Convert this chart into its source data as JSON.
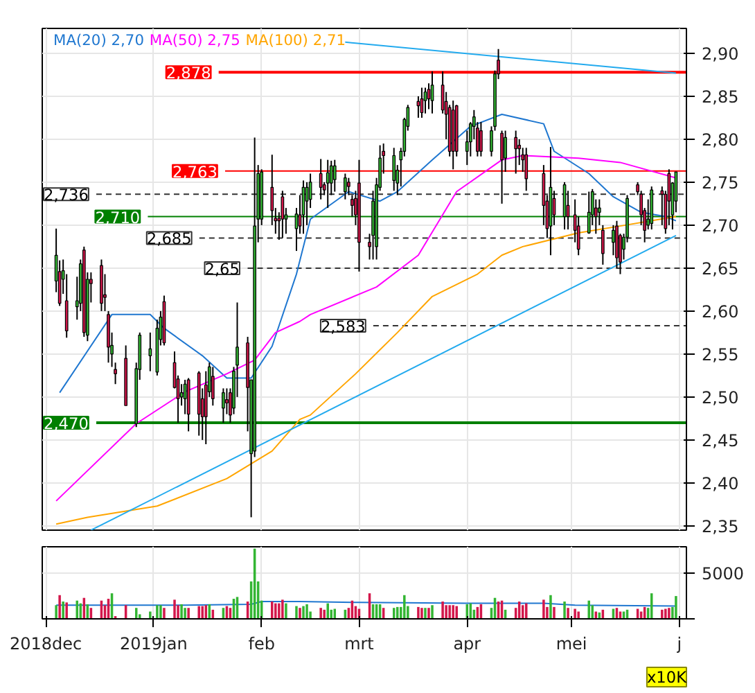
{
  "chart_data": [
    {
      "type": "candlestick",
      "tick_labels": "y",
      "grid": true,
      "legend": "top left",
      "x": [
        "2018-12-04",
        "2018-12-05",
        "2018-12-06",
        "2018-12-07",
        "2018-12-10",
        "2018-12-11",
        "2018-12-12",
        "2018-12-13",
        "2018-12-14",
        "2018-12-17",
        "2018-12-18",
        "2018-12-19",
        "2018-12-20",
        "2018-12-21",
        "2018-12-24",
        "2018-12-27",
        "2018-12-28",
        "2018-12-31",
        "2019-01-02",
        "2019-01-03",
        "2019-01-04",
        "2019-01-07",
        "2019-01-08",
        "2019-01-09",
        "2019-01-10",
        "2019-01-11",
        "2019-01-14",
        "2019-01-15",
        "2019-01-16",
        "2019-01-17",
        "2019-01-18",
        "2019-01-21",
        "2019-01-22",
        "2019-01-23",
        "2019-01-24",
        "2019-01-25",
        "2019-01-28",
        "2019-01-29",
        "2019-01-30",
        "2019-01-31",
        "2019-02-01",
        "2019-02-04",
        "2019-02-05",
        "2019-02-06",
        "2019-02-07",
        "2019-02-08",
        "2019-02-11",
        "2019-02-12",
        "2019-02-13",
        "2019-02-14",
        "2019-02-15",
        "2019-02-18",
        "2019-02-19",
        "2019-02-20",
        "2019-02-21",
        "2019-02-22",
        "2019-02-25",
        "2019-02-26",
        "2019-02-27",
        "2019-02-28",
        "2019-03-01",
        "2019-03-04",
        "2019-03-05",
        "2019-03-06",
        "2019-03-07",
        "2019-03-08",
        "2019-03-11",
        "2019-03-12",
        "2019-03-13",
        "2019-03-14",
        "2019-03-15",
        "2019-03-18",
        "2019-03-19",
        "2019-03-20",
        "2019-03-21",
        "2019-03-22",
        "2019-03-25",
        "2019-03-26",
        "2019-03-27",
        "2019-03-28",
        "2019-03-29",
        "2019-04-01",
        "2019-04-02",
        "2019-04-03",
        "2019-04-04",
        "2019-04-05",
        "2019-04-08",
        "2019-04-09",
        "2019-04-10",
        "2019-04-11",
        "2019-04-12",
        "2019-04-15",
        "2019-04-16",
        "2019-04-17",
        "2019-04-18",
        "2019-04-23",
        "2019-04-24",
        "2019-04-25",
        "2019-04-26",
        "2019-04-29",
        "2019-04-30",
        "2019-05-02",
        "2019-05-03",
        "2019-05-06",
        "2019-05-07",
        "2019-05-08",
        "2019-05-09",
        "2019-05-10",
        "2019-05-13",
        "2019-05-14",
        "2019-05-15",
        "2019-05-16",
        "2019-05-17",
        "2019-05-20",
        "2019-05-21",
        "2019-05-22",
        "2019-05-23",
        "2019-05-24",
        "2019-05-27",
        "2019-05-28",
        "2019-05-29",
        "2019-05-30",
        "2019-05-31"
      ],
      "ohlc": [
        [
          2.635,
          2.696,
          2.622,
          2.665
        ],
        [
          2.646,
          2.659,
          2.606,
          2.609
        ],
        [
          2.637,
          2.66,
          2.62,
          2.647
        ],
        [
          2.612,
          2.643,
          2.569,
          2.577
        ],
        [
          2.605,
          2.64,
          2.59,
          2.612
        ],
        [
          2.609,
          2.66,
          2.6,
          2.655
        ],
        [
          2.671,
          2.675,
          2.57,
          2.575
        ],
        [
          2.572,
          2.645,
          2.565,
          2.637
        ],
        [
          2.637,
          2.645,
          2.61,
          2.632
        ],
        [
          2.653,
          2.66,
          2.6,
          2.609
        ],
        [
          2.619,
          2.643,
          2.6,
          2.616
        ],
        [
          2.596,
          2.6,
          2.54,
          2.558
        ],
        [
          2.55,
          2.575,
          2.535,
          2.56
        ],
        [
          2.532,
          2.54,
          2.515,
          2.527
        ],
        [
          2.545,
          2.56,
          2.49,
          2.49
        ],
        [
          2.469,
          2.54,
          2.465,
          2.533
        ],
        [
          2.532,
          2.575,
          2.52,
          2.572
        ],
        [
          2.548,
          2.575,
          2.53,
          2.556
        ],
        [
          2.529,
          2.59,
          2.525,
          2.58
        ],
        [
          2.567,
          2.6,
          2.56,
          2.593
        ],
        [
          2.611,
          2.618,
          2.56,
          2.563
        ],
        [
          2.54,
          2.553,
          2.51,
          2.511
        ],
        [
          2.521,
          2.525,
          2.47,
          2.498
        ],
        [
          2.5,
          2.515,
          2.49,
          2.505
        ],
        [
          2.498,
          2.52,
          2.48,
          2.515
        ],
        [
          2.52,
          2.522,
          2.46,
          2.48
        ],
        [
          2.528,
          2.53,
          2.455,
          2.48
        ],
        [
          2.498,
          2.51,
          2.45,
          2.477
        ],
        [
          2.514,
          2.53,
          2.445,
          2.477
        ],
        [
          2.506,
          2.54,
          2.5,
          2.535
        ],
        [
          2.524,
          2.535,
          2.49,
          2.498
        ],
        [
          2.487,
          2.51,
          2.47,
          2.505
        ],
        [
          2.497,
          2.51,
          2.48,
          2.493
        ],
        [
          2.505,
          2.51,
          2.47,
          2.479
        ],
        [
          2.487,
          2.535,
          2.48,
          2.53
        ],
        [
          2.537,
          2.61,
          2.5,
          2.558
        ],
        [
          2.563,
          2.57,
          2.46,
          2.511
        ],
        [
          2.434,
          2.52,
          2.36,
          2.52
        ],
        [
          2.437,
          2.802,
          2.43,
          2.699
        ],
        [
          2.707,
          2.77,
          2.68,
          2.76
        ],
        [
          2.707,
          2.765,
          2.7,
          2.762
        ],
        [
          2.744,
          2.782,
          2.7,
          2.717
        ],
        [
          2.708,
          2.72,
          2.69,
          2.705
        ],
        [
          2.708,
          2.715,
          2.683,
          2.705
        ],
        [
          2.733,
          2.74,
          2.685,
          2.707
        ],
        [
          2.707,
          2.72,
          2.69,
          2.712
        ],
        [
          2.696,
          2.72,
          2.67,
          2.713
        ],
        [
          2.712,
          2.735,
          2.69,
          2.699
        ],
        [
          2.712,
          2.752,
          2.69,
          2.744
        ],
        [
          2.728,
          2.75,
          2.7,
          2.744
        ],
        [
          2.73,
          2.76,
          2.72,
          2.75
        ],
        [
          2.76,
          2.777,
          2.73,
          2.744
        ],
        [
          2.747,
          2.75,
          2.735,
          2.741
        ],
        [
          2.749,
          2.776,
          2.72,
          2.761
        ],
        [
          2.749,
          2.775,
          2.735,
          2.769
        ],
        [
          2.753,
          2.776,
          2.739,
          2.769
        ],
        [
          2.739,
          2.76,
          2.73,
          2.755
        ],
        [
          2.75,
          2.755,
          2.735,
          2.745
        ],
        [
          2.73,
          2.735,
          2.71,
          2.723
        ],
        [
          2.731,
          2.74,
          2.7,
          2.712
        ],
        [
          2.749,
          2.776,
          2.646,
          2.68
        ],
        [
          2.68,
          2.69,
          2.66,
          2.675
        ],
        [
          2.688,
          2.74,
          2.66,
          2.728
        ],
        [
          2.675,
          2.755,
          2.66,
          2.747
        ],
        [
          2.744,
          2.793,
          2.74,
          2.778
        ],
        [
          2.786,
          2.795,
          2.76,
          2.781
        ],
        [
          2.752,
          2.79,
          2.74,
          2.781
        ],
        [
          2.749,
          2.77,
          2.735,
          2.764
        ],
        [
          2.776,
          2.79,
          2.745,
          2.786
        ],
        [
          2.786,
          2.825,
          2.78,
          2.823
        ],
        [
          2.815,
          2.84,
          2.81,
          2.837
        ],
        [
          2.844,
          2.85,
          2.825,
          2.839
        ],
        [
          2.847,
          2.86,
          2.825,
          2.831
        ],
        [
          2.845,
          2.86,
          2.83,
          2.855
        ],
        [
          2.858,
          2.865,
          2.835,
          2.847
        ],
        [
          2.845,
          2.879,
          2.83,
          2.863
        ],
        [
          2.863,
          2.879,
          2.83,
          2.834
        ],
        [
          2.844,
          2.855,
          2.8,
          2.829
        ],
        [
          2.837,
          2.84,
          2.78,
          2.786
        ],
        [
          2.834,
          2.845,
          2.765,
          2.786
        ],
        [
          2.839,
          2.84,
          2.78,
          2.786
        ],
        [
          2.786,
          2.81,
          2.77,
          2.797
        ],
        [
          2.797,
          2.82,
          2.78,
          2.818
        ],
        [
          2.815,
          2.834,
          2.8,
          2.826
        ],
        [
          2.813,
          2.82,
          2.78,
          2.786
        ],
        [
          2.81,
          2.82,
          2.78,
          2.786
        ],
        [
          2.786,
          2.815,
          2.78,
          2.81
        ],
        [
          2.815,
          2.88,
          2.81,
          2.876
        ],
        [
          2.892,
          2.905,
          2.87,
          2.876
        ],
        [
          2.807,
          2.81,
          2.725,
          2.776
        ],
        [
          2.778,
          2.81,
          2.762,
          2.802
        ],
        [
          2.802,
          2.81,
          2.76,
          2.789
        ],
        [
          2.793,
          2.8,
          2.77,
          2.789
        ],
        [
          2.782,
          2.79,
          2.762,
          2.776
        ],
        [
          2.782,
          2.79,
          2.74,
          2.754
        ],
        [
          2.76,
          2.77,
          2.7,
          2.723
        ],
        [
          2.728,
          2.735,
          2.685,
          2.696
        ],
        [
          2.699,
          2.791,
          2.665,
          2.744
        ],
        [
          2.731,
          2.74,
          2.7,
          2.712
        ],
        [
          2.71,
          2.75,
          2.695,
          2.747
        ],
        [
          2.723,
          2.74,
          2.695,
          2.71
        ],
        [
          2.712,
          2.73,
          2.68,
          2.694
        ],
        [
          2.699,
          2.71,
          2.665,
          2.672
        ],
        [
          2.691,
          2.739,
          2.69,
          2.715
        ],
        [
          2.712,
          2.742,
          2.7,
          2.739
        ],
        [
          2.72,
          2.73,
          2.69,
          2.71
        ],
        [
          2.715,
          2.73,
          2.7,
          2.72
        ],
        [
          2.694,
          2.7,
          2.654,
          2.667
        ],
        [
          2.68,
          2.7,
          2.665,
          2.694
        ],
        [
          2.699,
          2.705,
          2.65,
          2.662
        ],
        [
          2.688,
          2.69,
          2.643,
          2.657
        ],
        [
          2.672,
          2.69,
          2.66,
          2.686
        ],
        [
          2.686,
          2.735,
          2.68,
          2.731
        ],
        [
          2.747,
          2.75,
          2.735,
          2.739
        ],
        [
          2.736,
          2.74,
          2.7,
          2.712
        ],
        [
          2.717,
          2.72,
          2.68,
          2.694
        ],
        [
          2.7,
          2.73,
          2.695,
          2.707
        ],
        [
          2.702,
          2.745,
          2.695,
          2.741
        ],
        [
          2.74,
          2.745,
          2.7,
          2.736
        ],
        [
          2.736,
          2.74,
          2.69,
          2.696
        ],
        [
          2.76,
          2.765,
          2.7,
          2.728
        ],
        [
          2.712,
          2.75,
          2.695,
          2.749
        ],
        [
          2.728,
          2.762,
          2.715,
          2.762
        ]
      ],
      "colors": [
        "#33b533",
        "#d3174b",
        "#33b533",
        "#d3174b",
        "#33b533",
        "#33b533",
        "#d3174b",
        "#33b533",
        "#d3174b",
        "#d3174b",
        "#d3174b",
        "#d3174b",
        "#33b533",
        "#d3174b",
        "#d3174b",
        "#33b533",
        "#33b533",
        "#33b533",
        "#33b533",
        "#33b533",
        "#d3174b",
        "#d3174b",
        "#d3174b",
        "#33b533",
        "#33b533",
        "#d3174b",
        "#d3174b",
        "#d3174b",
        "#d3174b",
        "#33b533",
        "#d3174b",
        "#33b533",
        "#d3174b",
        "#d3174b",
        "#33b533",
        "#33b533",
        "#d3174b",
        "#33b533",
        "#33b533",
        "#33b533",
        "#33b533",
        "#d3174b",
        "#d3174b",
        "#d3174b",
        "#d3174b",
        "#33b533",
        "#33b533",
        "#d3174b",
        "#33b533",
        "#33b533",
        "#33b533",
        "#d3174b",
        "#d3174b",
        "#33b533",
        "#33b533",
        "#33b533",
        "#33b533",
        "#d3174b",
        "#d3174b",
        "#d3174b",
        "#d3174b",
        "#d3174b",
        "#33b533",
        "#33b533",
        "#33b533",
        "#d3174b",
        "#33b533",
        "#33b533",
        "#33b533",
        "#33b533",
        "#33b533",
        "#d3174b",
        "#d3174b",
        "#33b533",
        "#d3174b",
        "#33b533",
        "#d3174b",
        "#d3174b",
        "#d3174b",
        "#d3174b",
        "#d3174b",
        "#33b533",
        "#33b533",
        "#33b533",
        "#d3174b",
        "#d3174b",
        "#33b533",
        "#33b533",
        "#d3174b",
        "#d3174b",
        "#33b533",
        "#d3174b",
        "#d3174b",
        "#d3174b",
        "#d3174b",
        "#d3174b",
        "#d3174b",
        "#33b533",
        "#d3174b",
        "#33b533",
        "#d3174b",
        "#d3174b",
        "#d3174b",
        "#33b533",
        "#33b533",
        "#d3174b",
        "#33b533",
        "#d3174b",
        "#33b533",
        "#d3174b",
        "#d3174b",
        "#33b533",
        "#33b533",
        "#d3174b",
        "#d3174b",
        "#d3174b",
        "#33b533",
        "#33b533",
        "#d3174b",
        "#d3174b",
        "#d3174b",
        "#33b533",
        "#33b533"
      ],
      "series": [
        {
          "type": "line",
          "name": "MA(20) 2,70",
          "color": "#1f77d0",
          "x": [
            "2018-12-05",
            "2018-12-20",
            "2018-12-31",
            "2019-01-04",
            "2019-01-15",
            "2019-01-22",
            "2019-01-29",
            "2019-02-04",
            "2019-02-11",
            "2019-02-15",
            "2019-02-26",
            "2019-03-07",
            "2019-03-12",
            "2019-03-22",
            "2019-04-02",
            "2019-04-11",
            "2019-04-23",
            "2019-04-26",
            "2019-05-06",
            "2019-05-13",
            "2019-05-21",
            "2019-05-28",
            "2019-05-31"
          ],
          "values": [
            2.505,
            2.596,
            2.596,
            2.58,
            2.548,
            2.522,
            2.522,
            2.559,
            2.643,
            2.707,
            2.739,
            2.728,
            2.739,
            2.776,
            2.815,
            2.829,
            2.818,
            2.786,
            2.76,
            2.733,
            2.715,
            2.71,
            2.705
          ]
        },
        {
          "type": "line",
          "name": "MA(50) 2,75",
          "color": "#ff00ff",
          "x": [
            "2018-12-04",
            "2018-12-27",
            "2019-01-10",
            "2019-01-22",
            "2019-01-30",
            "2019-02-05",
            "2019-02-12",
            "2019-02-15",
            "2019-03-06",
            "2019-03-18",
            "2019-03-29",
            "2019-04-11",
            "2019-04-17",
            "2019-05-03",
            "2019-05-15",
            "2019-05-31"
          ],
          "values": [
            2.379,
            2.469,
            2.506,
            2.527,
            2.543,
            2.575,
            2.588,
            2.596,
            2.628,
            2.665,
            2.739,
            2.776,
            2.781,
            2.778,
            2.773,
            2.755
          ]
        },
        {
          "type": "line",
          "name": "MA(100) 2,71",
          "color": "#ffa500",
          "x": [
            "2018-12-04",
            "2018-12-13",
            "2019-01-02",
            "2019-01-22",
            "2019-02-04",
            "2019-02-12",
            "2019-02-15",
            "2019-02-28",
            "2019-03-12",
            "2019-03-22",
            "2019-04-04",
            "2019-04-11",
            "2019-04-17",
            "2019-05-03",
            "2019-05-15",
            "2019-05-31"
          ],
          "values": [
            2.352,
            2.36,
            2.373,
            2.405,
            2.437,
            2.474,
            2.479,
            2.527,
            2.575,
            2.617,
            2.643,
            2.665,
            2.675,
            2.691,
            2.699,
            2.71
          ]
        },
        {
          "type": "line",
          "color": "#22aaee",
          "x": [
            "2018-12-14",
            "2019-05-31"
          ],
          "values": [
            2.345,
            2.688
          ]
        },
        {
          "type": "line",
          "color": "#22aaee",
          "x": [
            "2019-02-25",
            "2019-05-31"
          ],
          "values": [
            2.913,
            2.877
          ]
        }
      ],
      "ref_lines": [
        {
          "axis": "y",
          "value": 2.878,
          "label": "2,878",
          "color": "#ff0000",
          "line_style": "solid"
        },
        {
          "axis": "y",
          "value": 2.763,
          "label": "2,763",
          "color": "#ff0000",
          "line_style": "solid"
        },
        {
          "axis": "y",
          "value": 2.736,
          "label": "2,736",
          "color": "#333333",
          "line_style": "dashed"
        },
        {
          "axis": "y",
          "value": 2.71,
          "label": "2,710",
          "color": "#008000",
          "line_style": "solid"
        },
        {
          "axis": "y",
          "value": 2.685,
          "label": "2,685",
          "color": "#333333",
          "line_style": "dashed"
        },
        {
          "axis": "y",
          "value": 2.65,
          "label": "2,65",
          "color": "#333333",
          "line_style": "dashed"
        },
        {
          "axis": "y",
          "value": 2.583,
          "label": "2,583",
          "color": "#333333",
          "line_style": "dashed"
        },
        {
          "axis": "y",
          "value": 2.47,
          "label": "2,470",
          "color": "#008000",
          "line_style": "solid"
        }
      ],
      "xlim": [
        "2018-11-30",
        "2019-06-03"
      ],
      "xticks": [
        {
          "value": "2018-12-01",
          "label": null
        },
        {
          "value": "2019-01-01",
          "label": null
        },
        {
          "value": "2019-02-01",
          "label": null
        },
        {
          "value": "2019-03-01",
          "label": null
        },
        {
          "value": "2019-04-01",
          "label": null
        },
        {
          "value": "2019-05-01",
          "label": null
        },
        {
          "value": "2019-06-01",
          "label": null
        }
      ],
      "ylim": [
        2.345,
        2.929
      ],
      "yticks": [
        {
          "value": 2.35,
          "label": "2,35"
        },
        {
          "value": 2.4,
          "label": "2,40"
        },
        {
          "value": 2.45,
          "label": "2,45"
        },
        {
          "value": 2.5,
          "label": "2,50"
        },
        {
          "value": 2.55,
          "label": "2,55"
        },
        {
          "value": 2.6,
          "label": "2,60"
        },
        {
          "value": 2.65,
          "label": "2,65"
        },
        {
          "value": 2.7,
          "label": "2,70"
        },
        {
          "value": 2.75,
          "label": "2,75"
        },
        {
          "value": 2.8,
          "label": "2,80"
        },
        {
          "value": 2.85,
          "label": "2,85"
        },
        {
          "value": 2.9,
          "label": "2,90"
        }
      ]
    },
    {
      "type": "bar",
      "grid": true,
      "x": [
        "2018-12-04",
        "2018-12-05",
        "2018-12-06",
        "2018-12-07",
        "2018-12-10",
        "2018-12-11",
        "2018-12-12",
        "2018-12-13",
        "2018-12-14",
        "2018-12-17",
        "2018-12-18",
        "2018-12-19",
        "2018-12-20",
        "2018-12-21",
        "2018-12-24",
        "2018-12-27",
        "2018-12-28",
        "2018-12-31",
        "2019-01-02",
        "2019-01-03",
        "2019-01-04",
        "2019-01-07",
        "2019-01-08",
        "2019-01-09",
        "2019-01-10",
        "2019-01-11",
        "2019-01-14",
        "2019-01-15",
        "2019-01-16",
        "2019-01-17",
        "2019-01-18",
        "2019-01-21",
        "2019-01-22",
        "2019-01-23",
        "2019-01-24",
        "2019-01-25",
        "2019-01-28",
        "2019-01-29",
        "2019-01-30",
        "2019-01-31",
        "2019-02-01",
        "2019-02-04",
        "2019-02-05",
        "2019-02-06",
        "2019-02-07",
        "2019-02-08",
        "2019-02-11",
        "2019-02-12",
        "2019-02-13",
        "2019-02-14",
        "2019-02-15",
        "2019-02-18",
        "2019-02-19",
        "2019-02-20",
        "2019-02-21",
        "2019-02-22",
        "2019-02-25",
        "2019-02-26",
        "2019-02-27",
        "2019-02-28",
        "2019-03-01",
        "2019-03-04",
        "2019-03-05",
        "2019-03-06",
        "2019-03-07",
        "2019-03-08",
        "2019-03-11",
        "2019-03-12",
        "2019-03-13",
        "2019-03-14",
        "2019-03-15",
        "2019-03-18",
        "2019-03-19",
        "2019-03-20",
        "2019-03-21",
        "2019-03-22",
        "2019-03-25",
        "2019-03-26",
        "2019-03-27",
        "2019-03-28",
        "2019-03-29",
        "2019-04-01",
        "2019-04-02",
        "2019-04-03",
        "2019-04-04",
        "2019-04-05",
        "2019-04-08",
        "2019-04-09",
        "2019-04-10",
        "2019-04-11",
        "2019-04-12",
        "2019-04-15",
        "2019-04-16",
        "2019-04-17",
        "2019-04-18",
        "2019-04-23",
        "2019-04-24",
        "2019-04-25",
        "2019-04-26",
        "2019-04-29",
        "2019-04-30",
        "2019-05-02",
        "2019-05-03",
        "2019-05-06",
        "2019-05-07",
        "2019-05-08",
        "2019-05-09",
        "2019-05-10",
        "2019-05-13",
        "2019-05-14",
        "2019-05-15",
        "2019-05-16",
        "2019-05-17",
        "2019-05-20",
        "2019-05-21",
        "2019-05-22",
        "2019-05-23",
        "2019-05-24",
        "2019-05-27",
        "2019-05-28",
        "2019-05-29",
        "2019-05-30",
        "2019-05-31"
      ],
      "values": [
        1500,
        2600,
        1900,
        1800,
        2000,
        1700,
        2300,
        1600,
        1200,
        2000,
        1500,
        2200,
        2800,
        300,
        1500,
        1200,
        500,
        800,
        1500,
        1500,
        1200,
        2100,
        1500,
        1600,
        1200,
        1200,
        1400,
        1400,
        1500,
        1600,
        1000,
        1200,
        1400,
        1200,
        2200,
        2400,
        1900,
        4100,
        7700,
        4100,
        2000,
        1900,
        1700,
        1700,
        2100,
        1700,
        1400,
        1200,
        1400,
        1600,
        800,
        1200,
        1000,
        1700,
        1000,
        1100,
        1000,
        1200,
        2000,
        1400,
        1100,
        2800,
        1600,
        1600,
        1600,
        1200,
        1200,
        1300,
        1300,
        2600,
        1400,
        1300,
        1200,
        1200,
        1200,
        1500,
        1900,
        1500,
        1500,
        1500,
        1400,
        1600,
        1700,
        1000,
        1300,
        1600,
        1200,
        2300,
        1900,
        2000,
        1000,
        1200,
        1900,
        1500,
        1700,
        2100,
        1300,
        2600,
        1300,
        1900,
        1200,
        1100,
        800,
        2000,
        1500,
        800,
        700,
        1000,
        1100,
        1200,
        800,
        800,
        1000,
        1100,
        800,
        1300,
        1200,
        2800,
        1000,
        1100,
        1200,
        1300,
        2500
      ],
      "colors": [
        "#33b533",
        "#d3174b",
        "#33b533",
        "#d3174b",
        "#33b533",
        "#33b533",
        "#d3174b",
        "#33b533",
        "#d3174b",
        "#d3174b",
        "#d3174b",
        "#d3174b",
        "#33b533",
        "#d3174b",
        "#d3174b",
        "#33b533",
        "#33b533",
        "#33b533",
        "#33b533",
        "#33b533",
        "#d3174b",
        "#d3174b",
        "#d3174b",
        "#33b533",
        "#33b533",
        "#d3174b",
        "#d3174b",
        "#d3174b",
        "#d3174b",
        "#33b533",
        "#d3174b",
        "#33b533",
        "#d3174b",
        "#d3174b",
        "#33b533",
        "#33b533",
        "#d3174b",
        "#33b533",
        "#33b533",
        "#33b533",
        "#33b533",
        "#d3174b",
        "#d3174b",
        "#d3174b",
        "#d3174b",
        "#33b533",
        "#33b533",
        "#d3174b",
        "#33b533",
        "#33b533",
        "#33b533",
        "#d3174b",
        "#d3174b",
        "#33b533",
        "#33b533",
        "#33b533",
        "#33b533",
        "#d3174b",
        "#d3174b",
        "#d3174b",
        "#d3174b",
        "#d3174b",
        "#33b533",
        "#33b533",
        "#33b533",
        "#d3174b",
        "#33b533",
        "#33b533",
        "#33b533",
        "#33b533",
        "#33b533",
        "#d3174b",
        "#d3174b",
        "#33b533",
        "#d3174b",
        "#33b533",
        "#d3174b",
        "#d3174b",
        "#d3174b",
        "#d3174b",
        "#d3174b",
        "#33b533",
        "#33b533",
        "#33b533",
        "#d3174b",
        "#d3174b",
        "#33b533",
        "#33b533",
        "#d3174b",
        "#d3174b",
        "#33b533",
        "#d3174b",
        "#d3174b",
        "#d3174b",
        "#d3174b",
        "#d3174b",
        "#d3174b",
        "#33b533",
        "#d3174b",
        "#33b533",
        "#d3174b",
        "#d3174b",
        "#d3174b",
        "#33b533",
        "#33b533",
        "#d3174b",
        "#33b533",
        "#d3174b",
        "#33b533",
        "#d3174b",
        "#d3174b",
        "#33b533",
        "#33b533",
        "#d3174b",
        "#d3174b",
        "#d3174b",
        "#33b533",
        "#33b533",
        "#d3174b",
        "#d3174b",
        "#d3174b",
        "#33b533",
        "#33b533"
      ],
      "series": [
        {
          "type": "line",
          "color": "#1f77d0",
          "x": [
            "2018-12-04",
            "2019-01-10",
            "2019-01-29",
            "2019-02-01",
            "2019-02-12",
            "2019-03-01",
            "2019-04-01",
            "2019-04-23",
            "2019-05-02",
            "2019-05-31"
          ],
          "values": [
            1500,
            1500,
            1600,
            1900,
            1900,
            1800,
            1700,
            1700,
            1500,
            1400
          ]
        }
      ],
      "annotations": [
        "x10K"
      ],
      "xlim": [
        "2018-11-30",
        "2019-06-03"
      ],
      "xticks": [
        {
          "value": "2018-12-01",
          "label": "2018dec"
        },
        {
          "value": "2019-01-01",
          "label": "2019jan"
        },
        {
          "value": "2019-02-01",
          "label": "feb"
        },
        {
          "value": "2019-03-01",
          "label": "mrt"
        },
        {
          "value": "2019-04-01",
          "label": "apr"
        },
        {
          "value": "2019-05-01",
          "label": "mei"
        },
        {
          "value": "2019-06-01",
          "label": "j"
        }
      ],
      "ylim": [
        0,
        7900
      ],
      "yticks": [
        {
          "value": 0,
          "label": null
        },
        5000
      ]
    }
  ]
}
